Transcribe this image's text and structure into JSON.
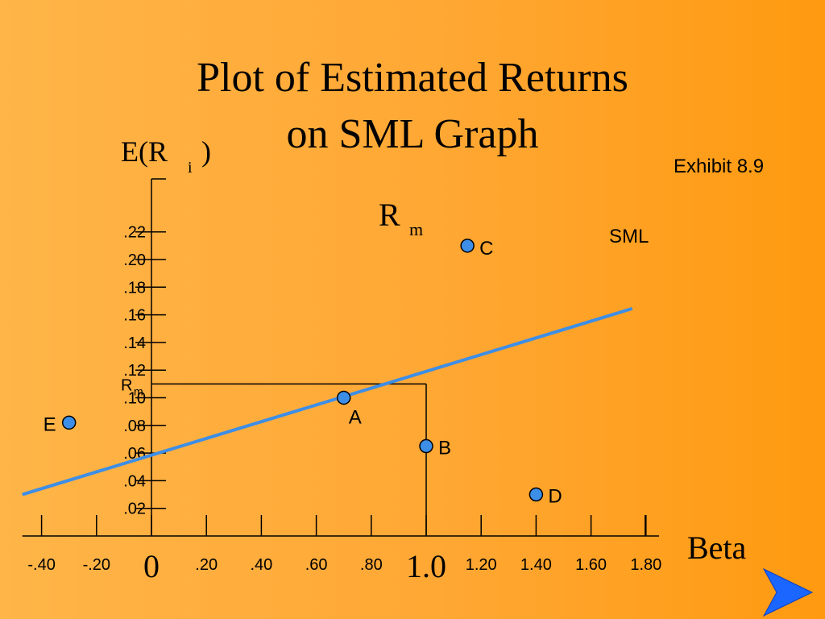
{
  "title_lines": [
    "Plot of Estimated Returns",
    "on SML Graph"
  ],
  "exhibit": "Exhibit 8.9",
  "colors": {
    "background_left": "#ffb548",
    "background_right": "#ff9a10",
    "line": "#3d8ee6",
    "point_fill": "#3d8ee6",
    "nav_arrow": "#1a66ff"
  },
  "chart_data": {
    "type": "scatter",
    "xlabel": "Beta",
    "ylabel": {
      "main": "E(R",
      "sub": "i",
      "close": ")"
    },
    "x_ticks": [
      {
        "value": -0.4,
        "label": "-.40"
      },
      {
        "value": -0.2,
        "label": "-.20"
      },
      {
        "value": 0,
        "label": "0"
      },
      {
        "value": 0.2,
        "label": ".20"
      },
      {
        "value": 0.4,
        "label": ".40"
      },
      {
        "value": 0.6,
        "label": ".60"
      },
      {
        "value": 0.8,
        "label": ".80"
      },
      {
        "value": 1.0,
        "label": "1.0"
      },
      {
        "value": 1.2,
        "label": "1.20"
      },
      {
        "value": 1.4,
        "label": "1.40"
      },
      {
        "value": 1.6,
        "label": "1.60"
      },
      {
        "value": 1.8,
        "label": "1.80"
      }
    ],
    "y_ticks": [
      {
        "value": 0.02,
        "label": ".02"
      },
      {
        "value": 0.04,
        "label": ".04"
      },
      {
        "value": 0.06,
        "label": ".06"
      },
      {
        "value": 0.08,
        "label": ".08"
      },
      {
        "value": 0.1,
        "label": ".10"
      },
      {
        "value": 0.12,
        "label": ".12"
      },
      {
        "value": 0.14,
        "label": ".14"
      },
      {
        "value": 0.16,
        "label": ".16"
      },
      {
        "value": 0.18,
        "label": ".18"
      },
      {
        "value": 0.2,
        "label": ".20"
      },
      {
        "value": 0.22,
        "label": ".22"
      }
    ],
    "rm_tick": {
      "value": 0.11,
      "label": "R",
      "sub": "m"
    },
    "xlim": [
      -0.47,
      1.85
    ],
    "ylim": [
      0.0,
      0.25
    ],
    "sml": {
      "label": "SML",
      "x": [
        -0.47,
        1.75
      ],
      "y": [
        0.03,
        0.1645
      ]
    },
    "market_point": {
      "x": 1.0,
      "y": 0.11,
      "label": "R",
      "sub": "m"
    },
    "points": [
      {
        "label": "A",
        "x": 0.7,
        "y": 0.1
      },
      {
        "label": "B",
        "x": 1.0,
        "y": 0.065
      },
      {
        "label": "C",
        "x": 1.15,
        "y": 0.21
      },
      {
        "label": "D",
        "x": 1.4,
        "y": 0.03
      },
      {
        "label": "E",
        "x": -0.3,
        "y": 0.082
      }
    ]
  }
}
